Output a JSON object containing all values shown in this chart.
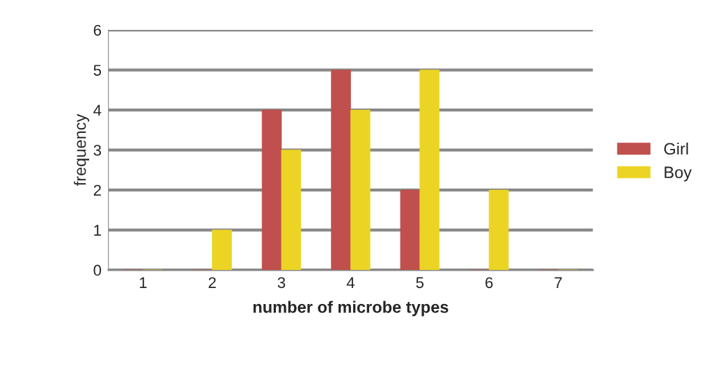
{
  "chart_data": {
    "type": "bar",
    "xlabel": "number of microbe types",
    "ylabel": "frequency",
    "categories": [
      "1",
      "2",
      "3",
      "4",
      "5",
      "6",
      "7"
    ],
    "series": [
      {
        "name": "Girl",
        "color": "#c0504d",
        "values": [
          0,
          0,
          4,
          5,
          2,
          0,
          0
        ]
      },
      {
        "name": "Boy",
        "color": "#ecd424",
        "values": [
          0,
          1,
          3,
          4,
          5,
          2,
          0
        ]
      }
    ],
    "ylim": [
      0,
      6
    ],
    "yticks": [
      0,
      1,
      2,
      3,
      4,
      5,
      6
    ],
    "grid": "y",
    "legend": "right"
  }
}
